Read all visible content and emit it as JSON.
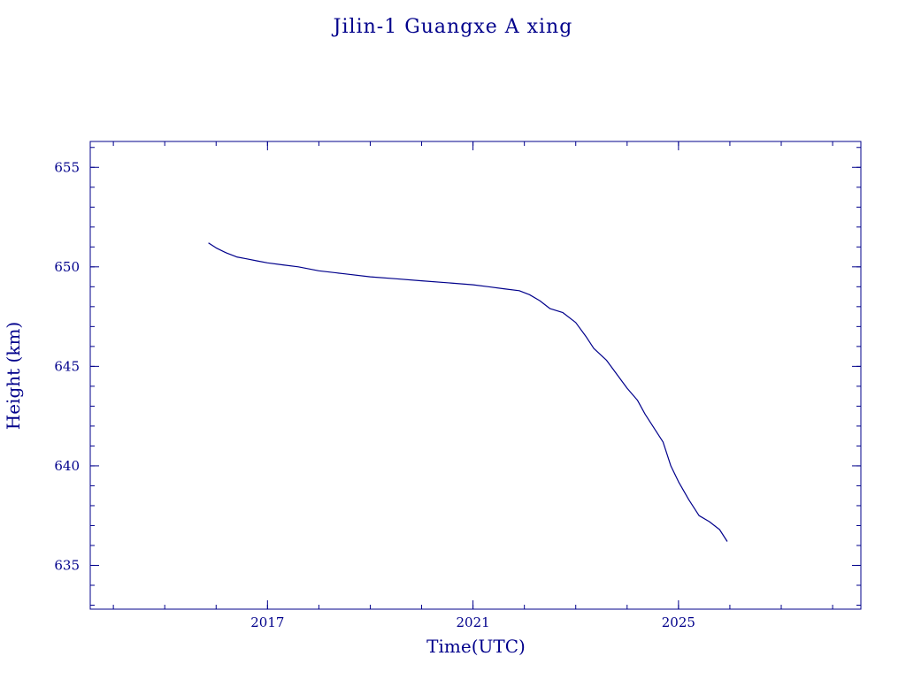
{
  "chart_data": {
    "type": "line",
    "title": "Jilin-1 Guangxe A xing",
    "xlabel": "Time(UTC)",
    "ylabel": "Height (km)",
    "xlim": [
      2013.55,
      2028.55
    ],
    "ylim": [
      632.8,
      656.3
    ],
    "xticks": [
      2017,
      2021,
      2025
    ],
    "xtick_labels": [
      "2017",
      "2021",
      "2025"
    ],
    "yticks": [
      635,
      640,
      645,
      650,
      655
    ],
    "ytick_labels": [
      "635",
      "640",
      "645",
      "650",
      "655"
    ],
    "grid": false,
    "color": "#00008b",
    "series": [
      {
        "x": [
          2015.85,
          2016.0,
          2016.2,
          2016.4,
          2016.6,
          2016.8,
          2017.0,
          2017.3,
          2017.6,
          2018.0,
          2018.5,
          2019.0,
          2019.5,
          2020.0,
          2020.5,
          2021.0,
          2021.3,
          2021.6,
          2021.9,
          2022.1,
          2022.3,
          2022.5,
          2022.75,
          2023.0,
          2023.2,
          2023.35,
          2023.6,
          2023.8,
          2024.0,
          2024.2,
          2024.35,
          2024.5,
          2024.7,
          2024.85,
          2025.0,
          2025.2,
          2025.4,
          2025.6,
          2025.8,
          2025.95
        ],
        "y": [
          651.2,
          650.95,
          650.7,
          650.5,
          650.4,
          650.3,
          650.2,
          650.1,
          650.0,
          649.8,
          649.65,
          649.5,
          649.4,
          649.3,
          649.2,
          649.1,
          649.0,
          648.9,
          648.8,
          648.6,
          648.3,
          647.9,
          647.7,
          647.2,
          646.5,
          645.9,
          645.3,
          644.6,
          643.9,
          643.3,
          642.6,
          642.0,
          641.2,
          640.0,
          639.2,
          638.3,
          637.5,
          637.2,
          636.8,
          636.2
        ]
      }
    ]
  }
}
